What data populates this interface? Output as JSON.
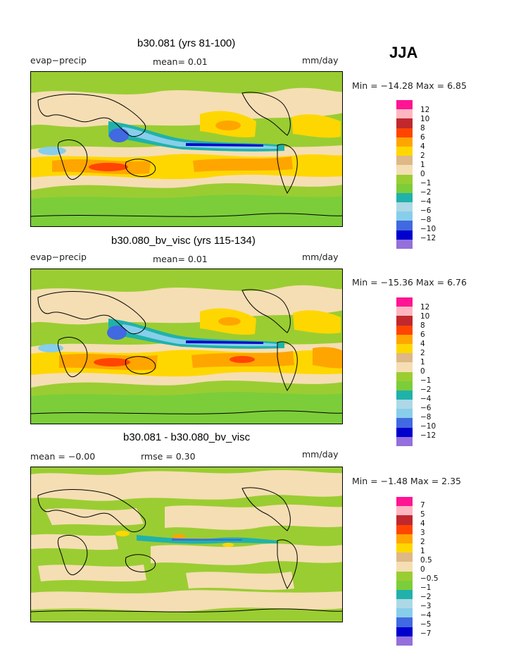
{
  "season": "JJA",
  "panels": [
    {
      "title": "b30.081 (yrs 81-100)",
      "left": "evap−precip",
      "center": "mean=    0.01",
      "right": "mm/day",
      "minmax": "Min = −14.28 Max =    6.85"
    },
    {
      "title": "b30.080_bv_visc (yrs 115-134)",
      "left": "evap−precip",
      "center": "mean=    0.01",
      "right": "mm/day",
      "minmax": "Min = −15.36 Max =    6.76"
    },
    {
      "title": "b30.081 - b30.080_bv_visc",
      "left": "mean =   −0.00",
      "center": "rmse =    0.30",
      "right": "mm/day",
      "minmax": "Min =  −1.48 Max =    2.35"
    }
  ],
  "legend_colors": [
    "#ff1493",
    "#ffb6c1",
    "#c0282d",
    "#ff4500",
    "#ffa500",
    "#ffd700",
    "#deb887",
    "#f5deb3",
    "#9acd32",
    "#7ccd3a",
    "#20b2aa",
    "#add8e6",
    "#87ceeb",
    "#4169e1",
    "#0000cd",
    "#9370db"
  ],
  "legend_labels_main": [
    "12",
    "10",
    "8",
    "6",
    "4",
    "2",
    "1",
    "0",
    "−1",
    "−2",
    "−4",
    "−6",
    "−8",
    "−10",
    "−12"
  ],
  "legend_labels_diff": [
    "7",
    "5",
    "4",
    "3",
    "2",
    "1",
    "0.5",
    "0",
    "−0.5",
    "−1",
    "−2",
    "−3",
    "−4",
    "−5",
    "−7"
  ]
}
